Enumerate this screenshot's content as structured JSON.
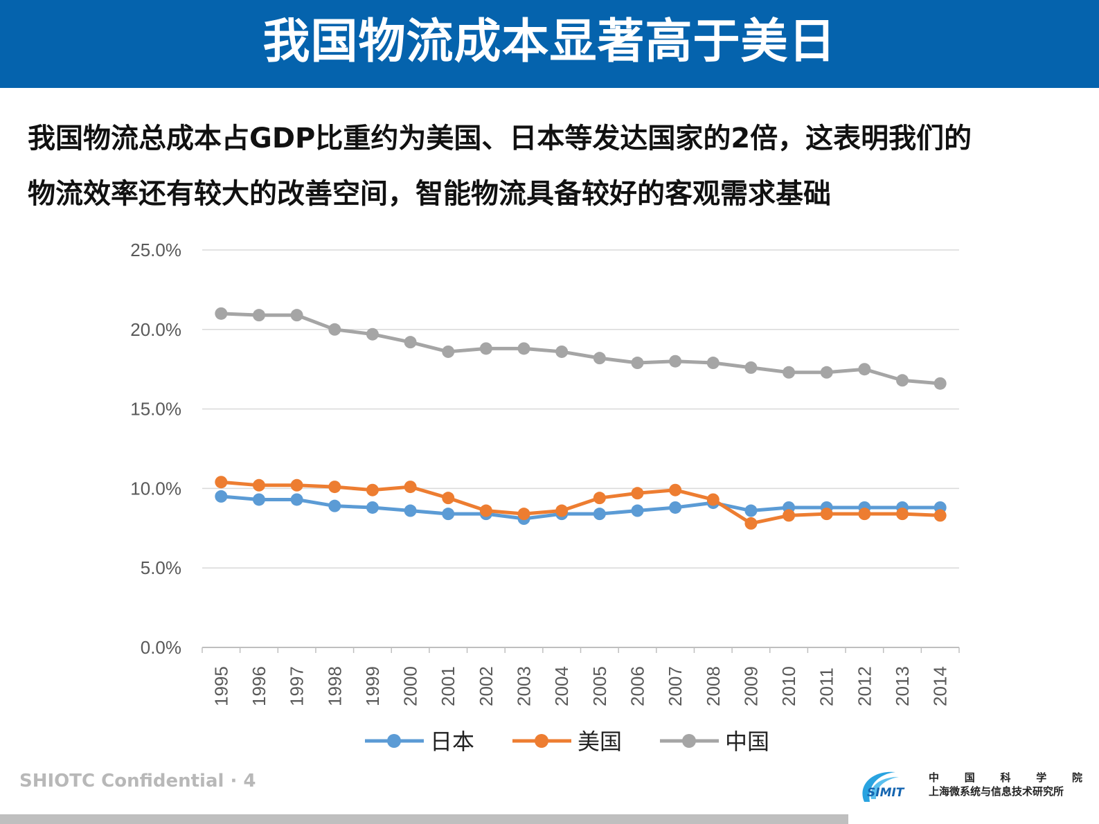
{
  "header": {
    "title": "我国物流成本显著高于美日"
  },
  "subtitle": {
    "line1": "我国物流总成本占GDP比重约为美国、日本等发达国家的2倍，这表明我们的",
    "line2": "物流效率还有较大的改善空间，智能物流具备较好的客观需求基础"
  },
  "footer": {
    "confidential": "SHIOTC Confidential · 4",
    "logo_text": "SIMIT",
    "logo_line1": [
      "中",
      "国",
      "科",
      "学",
      "院"
    ],
    "logo_line2": "上海微系统与信息技术研究所"
  },
  "chart_data": {
    "type": "line",
    "title": "",
    "xlabel": "",
    "ylabel": "",
    "ylim": [
      0,
      25
    ],
    "yticks": [
      "0.0%",
      "5.0%",
      "10.0%",
      "15.0%",
      "20.0%",
      "25.0%"
    ],
    "grid": true,
    "legend_position": "bottom",
    "categories": [
      "1995",
      "1996",
      "1997",
      "1998",
      "1999",
      "2000",
      "2001",
      "2002",
      "2003",
      "2004",
      "2005",
      "2006",
      "2007",
      "2008",
      "2009",
      "2010",
      "2011",
      "2012",
      "2013",
      "2014"
    ],
    "series": [
      {
        "name": "日本",
        "color": "#5b9bd5",
        "values": [
          9.5,
          9.3,
          9.3,
          8.9,
          8.8,
          8.6,
          8.4,
          8.4,
          8.1,
          8.4,
          8.4,
          8.6,
          8.8,
          9.1,
          8.6,
          8.8,
          8.8,
          8.8,
          8.8,
          8.8
        ]
      },
      {
        "name": "美国",
        "color": "#ed7d31",
        "values": [
          10.4,
          10.2,
          10.2,
          10.1,
          9.9,
          10.1,
          9.4,
          8.6,
          8.4,
          8.6,
          9.4,
          9.7,
          9.9,
          9.3,
          7.8,
          8.3,
          8.4,
          8.4,
          8.4,
          8.3
        ]
      },
      {
        "name": "中国",
        "color": "#a5a5a5",
        "values": [
          21.0,
          20.9,
          20.9,
          20.0,
          19.7,
          19.2,
          18.6,
          18.8,
          18.8,
          18.6,
          18.2,
          17.9,
          18.0,
          17.9,
          17.6,
          17.3,
          17.3,
          17.5,
          16.8,
          16.6
        ]
      }
    ]
  }
}
